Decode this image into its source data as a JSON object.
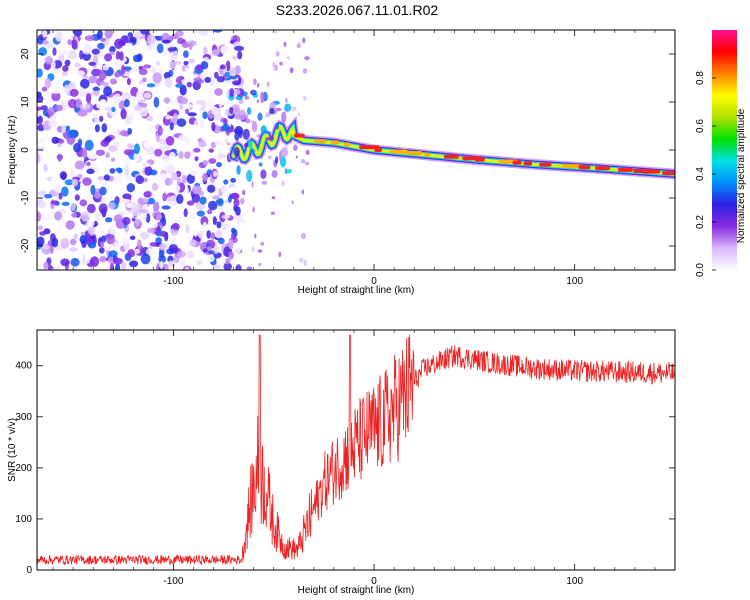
{
  "title": "S233.2026.067.11.01.R02",
  "chart_data": [
    {
      "type": "heatmap",
      "name": "spectrogram",
      "xlabel": "Height of straight line (km)",
      "ylabel": "Frequency (Hz)",
      "xlim": [
        -168,
        150
      ],
      "ylim": [
        -25,
        25
      ],
      "xticks": [
        -100,
        0,
        100
      ],
      "yticks": [
        -20,
        -10,
        0,
        10,
        20
      ],
      "colorbar": {
        "label": "Normalized spectral amplitude",
        "range": [
          0,
          1
        ],
        "ticks": [
          "0.0",
          "0.2",
          "0.4",
          "0.6",
          "0.8"
        ],
        "colors": [
          "#ffffff",
          "#d8b8ff",
          "#8a2be2",
          "#2b1fe0",
          "#0090ff",
          "#00e0e0",
          "#00e000",
          "#b0e000",
          "#ffff00",
          "#ff8000",
          "#ff0000",
          "#ff1090"
        ]
      },
      "noise_region": {
        "x_start": -168,
        "x_end": -70,
        "amplitude_range": [
          0.0,
          0.35
        ]
      },
      "ridge": {
        "description_values": [
          {
            "x": -70,
            "freq": -1
          },
          {
            "x": -60,
            "freq": 0
          },
          {
            "x": -45,
            "freq": 4
          },
          {
            "x": -35,
            "freq": 2
          },
          {
            "x": -20,
            "freq": 1.5
          },
          {
            "x": 0,
            "freq": 0
          },
          {
            "x": 20,
            "freq": -0.8
          },
          {
            "x": 50,
            "freq": -2
          },
          {
            "x": 80,
            "freq": -3
          },
          {
            "x": 110,
            "freq": -3.8
          },
          {
            "x": 150,
            "freq": -5
          }
        ]
      }
    },
    {
      "type": "line",
      "name": "snr",
      "xlabel": "Height of straight line (km)",
      "ylabel": "SNR (10 * v/v)",
      "xlim": [
        -168,
        150
      ],
      "ylim": [
        0,
        470
      ],
      "xticks": [
        -100,
        0,
        100
      ],
      "yticks": [
        0,
        100,
        200,
        300,
        400
      ],
      "color": "#ee2222",
      "envelope": [
        {
          "x": -168,
          "y": 20
        },
        {
          "x": -66,
          "y": 20
        },
        {
          "x": -62,
          "y": 120
        },
        {
          "x": -58,
          "y": 200
        },
        {
          "x": -54,
          "y": 160
        },
        {
          "x": -50,
          "y": 90
        },
        {
          "x": -45,
          "y": 45
        },
        {
          "x": -38,
          "y": 40
        },
        {
          "x": -32,
          "y": 100
        },
        {
          "x": -25,
          "y": 170
        },
        {
          "x": -15,
          "y": 220
        },
        {
          "x": -5,
          "y": 260
        },
        {
          "x": 5,
          "y": 290
        },
        {
          "x": 15,
          "y": 340
        },
        {
          "x": 25,
          "y": 395
        },
        {
          "x": 40,
          "y": 420
        },
        {
          "x": 60,
          "y": 405
        },
        {
          "x": 80,
          "y": 395
        },
        {
          "x": 100,
          "y": 390
        },
        {
          "x": 150,
          "y": 385
        }
      ],
      "spikes": [
        {
          "x": -57,
          "y": 460
        },
        {
          "x": -12,
          "y": 460
        }
      ]
    }
  ]
}
